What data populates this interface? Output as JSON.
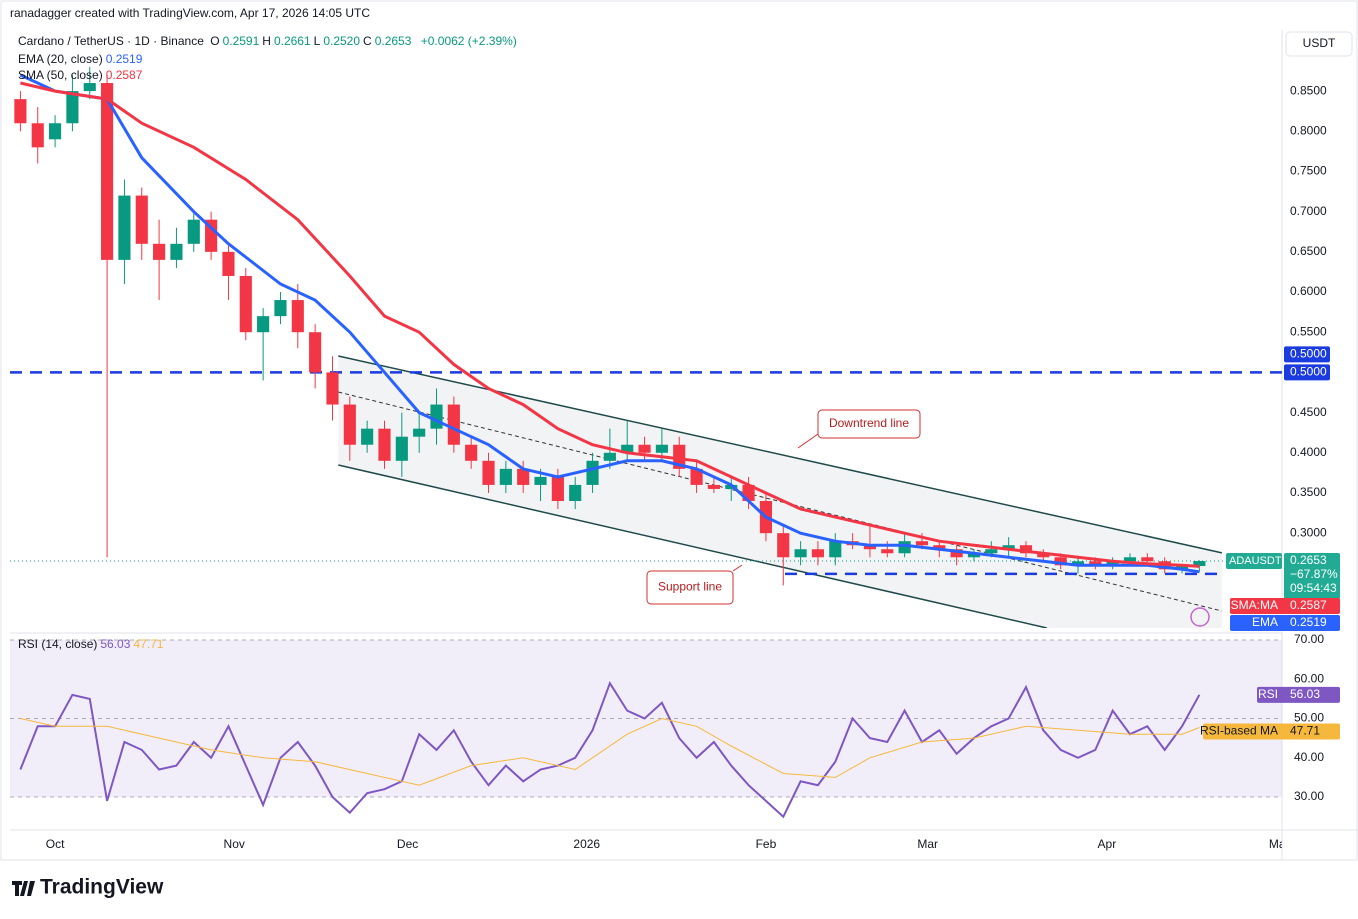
{
  "header": {
    "credit": "ranadagger created with TradingView.com, Apr 17, 2026 14:05 UTC",
    "brand": "TradingView"
  },
  "chart_data": [
    {
      "type": "candlestick",
      "title": "Cardano / TetherUS · 1D · Binance",
      "quote_letters": [
        "O",
        "H",
        "L",
        "C"
      ],
      "ohlc_labels": [
        "0.2591",
        "0.2661",
        "0.2520",
        "0.2653"
      ],
      "change": "+0.0062 (+2.39%)",
      "currency": "USDT",
      "x": [
        -6,
        -3,
        0,
        3,
        6,
        9,
        12,
        15,
        18,
        21,
        24,
        27,
        30,
        33,
        36,
        39,
        42,
        45,
        48,
        51,
        54,
        57,
        60,
        63,
        66,
        69,
        72,
        75,
        78,
        81,
        84,
        87,
        90,
        93,
        96,
        99,
        102,
        105,
        108,
        111,
        114,
        117,
        120,
        123,
        126,
        129,
        132,
        135,
        138,
        141,
        144,
        147,
        150,
        153,
        156,
        159,
        162,
        165,
        168,
        171,
        174,
        177,
        180,
        183,
        186,
        189,
        192,
        195,
        198
      ],
      "ohlc": [
        [
          0.84,
          0.85,
          0.8,
          0.81
        ],
        [
          0.81,
          0.83,
          0.76,
          0.78
        ],
        [
          0.79,
          0.82,
          0.78,
          0.81
        ],
        [
          0.81,
          0.87,
          0.8,
          0.85
        ],
        [
          0.85,
          0.88,
          0.84,
          0.86
        ],
        [
          0.86,
          0.87,
          0.27,
          0.64
        ],
        [
          0.64,
          0.74,
          0.61,
          0.72
        ],
        [
          0.72,
          0.73,
          0.64,
          0.66
        ],
        [
          0.66,
          0.69,
          0.59,
          0.64
        ],
        [
          0.64,
          0.68,
          0.63,
          0.66
        ],
        [
          0.66,
          0.7,
          0.65,
          0.69
        ],
        [
          0.69,
          0.7,
          0.64,
          0.65
        ],
        [
          0.65,
          0.66,
          0.59,
          0.62
        ],
        [
          0.62,
          0.63,
          0.54,
          0.55
        ],
        [
          0.55,
          0.58,
          0.49,
          0.57
        ],
        [
          0.57,
          0.6,
          0.56,
          0.59
        ],
        [
          0.59,
          0.61,
          0.53,
          0.55
        ],
        [
          0.55,
          0.56,
          0.48,
          0.5
        ],
        [
          0.5,
          0.52,
          0.44,
          0.46
        ],
        [
          0.46,
          0.47,
          0.39,
          0.41
        ],
        [
          0.41,
          0.44,
          0.4,
          0.43
        ],
        [
          0.43,
          0.44,
          0.38,
          0.39
        ],
        [
          0.39,
          0.45,
          0.37,
          0.42
        ],
        [
          0.42,
          0.45,
          0.4,
          0.43
        ],
        [
          0.43,
          0.48,
          0.41,
          0.46
        ],
        [
          0.46,
          0.47,
          0.4,
          0.41
        ],
        [
          0.41,
          0.42,
          0.38,
          0.39
        ],
        [
          0.39,
          0.4,
          0.35,
          0.36
        ],
        [
          0.36,
          0.39,
          0.35,
          0.38
        ],
        [
          0.38,
          0.39,
          0.35,
          0.36
        ],
        [
          0.36,
          0.38,
          0.34,
          0.37
        ],
        [
          0.37,
          0.38,
          0.33,
          0.34
        ],
        [
          0.34,
          0.37,
          0.33,
          0.36
        ],
        [
          0.36,
          0.4,
          0.35,
          0.39
        ],
        [
          0.39,
          0.43,
          0.38,
          0.4
        ],
        [
          0.4,
          0.44,
          0.39,
          0.41
        ],
        [
          0.41,
          0.42,
          0.39,
          0.4
        ],
        [
          0.4,
          0.43,
          0.39,
          0.41
        ],
        [
          0.41,
          0.42,
          0.37,
          0.38
        ],
        [
          0.38,
          0.39,
          0.35,
          0.36
        ],
        [
          0.36,
          0.37,
          0.35,
          0.355
        ],
        [
          0.355,
          0.37,
          0.34,
          0.36
        ],
        [
          0.36,
          0.37,
          0.33,
          0.34
        ],
        [
          0.34,
          0.35,
          0.29,
          0.3
        ],
        [
          0.3,
          0.31,
          0.235,
          0.27
        ],
        [
          0.27,
          0.29,
          0.26,
          0.28
        ],
        [
          0.28,
          0.29,
          0.26,
          0.27
        ],
        [
          0.27,
          0.3,
          0.26,
          0.29
        ],
        [
          0.29,
          0.3,
          0.28,
          0.285
        ],
        [
          0.285,
          0.31,
          0.27,
          0.28
        ],
        [
          0.28,
          0.29,
          0.27,
          0.275
        ],
        [
          0.275,
          0.3,
          0.27,
          0.29
        ],
        [
          0.29,
          0.3,
          0.28,
          0.285
        ],
        [
          0.285,
          0.29,
          0.27,
          0.28
        ],
        [
          0.28,
          0.285,
          0.26,
          0.27
        ],
        [
          0.27,
          0.28,
          0.265,
          0.275
        ],
        [
          0.275,
          0.29,
          0.27,
          0.28
        ],
        [
          0.28,
          0.295,
          0.27,
          0.285
        ],
        [
          0.285,
          0.29,
          0.27,
          0.275
        ],
        [
          0.275,
          0.28,
          0.265,
          0.27
        ],
        [
          0.27,
          0.275,
          0.255,
          0.26
        ],
        [
          0.26,
          0.27,
          0.25,
          0.265
        ],
        [
          0.265,
          0.27,
          0.255,
          0.26
        ],
        [
          0.26,
          0.27,
          0.255,
          0.265
        ],
        [
          0.265,
          0.275,
          0.26,
          0.27
        ],
        [
          0.27,
          0.275,
          0.26,
          0.265
        ],
        [
          0.265,
          0.27,
          0.25,
          0.255
        ],
        [
          0.255,
          0.26,
          0.25,
          0.259
        ],
        [
          0.2591,
          0.2661,
          0.252,
          0.2653
        ]
      ],
      "up_color": "#089981",
      "down_color": "#f23645",
      "xlim": [
        -7.8,
        212.3
      ],
      "xticks": [
        {
          "value": 0,
          "label": "Oct"
        },
        {
          "value": 31,
          "label": "Nov"
        },
        {
          "value": 61,
          "label": "Dec"
        },
        {
          "value": 92,
          "label": "2026"
        },
        {
          "value": 123,
          "label": "Feb"
        },
        {
          "value": 151,
          "label": "Mar"
        },
        {
          "value": 182,
          "label": "Apr"
        },
        {
          "value": 212,
          "label": "May"
        }
      ],
      "ylim": [
        0.182,
        0.926
      ],
      "yticks": [
        {
          "value": 0.3,
          "label": "0.3000"
        },
        {
          "value": 0.35,
          "label": "0.3500"
        },
        {
          "value": 0.4,
          "label": "0.4000"
        },
        {
          "value": 0.45,
          "label": "0.4500"
        },
        {
          "value": 0.55,
          "label": "0.5500"
        },
        {
          "value": 0.6,
          "label": "0.6000"
        },
        {
          "value": 0.65,
          "label": "0.6500"
        },
        {
          "value": 0.7,
          "label": "0.7000"
        },
        {
          "value": 0.75,
          "label": "0.7500"
        },
        {
          "value": 0.8,
          "label": "0.8000"
        },
        {
          "value": 0.85,
          "label": "0.8500"
        }
      ],
      "grid": false,
      "overlays": [
        {
          "name": "EMA (20, close)",
          "short_name": "EMA",
          "color": "#2962ff",
          "x": [
            -6,
            0,
            9,
            15,
            24,
            30,
            39,
            45,
            51,
            57,
            63,
            69,
            75,
            81,
            87,
            93,
            99,
            105,
            111,
            117,
            123,
            129,
            135,
            141,
            147,
            153,
            159,
            165,
            171,
            177,
            183,
            189,
            195,
            198
          ],
          "values": [
            0.87,
            0.85,
            0.84,
            0.767,
            0.7,
            0.66,
            0.61,
            0.59,
            0.55,
            0.5,
            0.45,
            0.43,
            0.41,
            0.38,
            0.37,
            0.38,
            0.39,
            0.39,
            0.38,
            0.36,
            0.32,
            0.3,
            0.29,
            0.285,
            0.285,
            0.28,
            0.275,
            0.27,
            0.265,
            0.26,
            0.26,
            0.26,
            0.255,
            0.2519
          ]
        },
        {
          "name": "SMA (50, close)",
          "short_name": "SMA:MA",
          "color": "#f23645",
          "x": [
            -6,
            0,
            9,
            15,
            24,
            33,
            42,
            51,
            57,
            63,
            69,
            75,
            81,
            87,
            93,
            99,
            105,
            111,
            117,
            123,
            129,
            135,
            141,
            147,
            153,
            159,
            165,
            171,
            177,
            183,
            189,
            195,
            198
          ],
          "values": [
            0.86,
            0.85,
            0.84,
            0.81,
            0.78,
            0.74,
            0.69,
            0.62,
            0.57,
            0.55,
            0.51,
            0.48,
            0.46,
            0.43,
            0.41,
            0.4,
            0.395,
            0.39,
            0.37,
            0.35,
            0.33,
            0.32,
            0.31,
            0.3,
            0.29,
            0.285,
            0.28,
            0.275,
            0.27,
            0.265,
            0.262,
            0.26,
            0.2587
          ]
        }
      ],
      "symbol_label": {
        "symbol": "ADAUSDT",
        "change": "−67.87%",
        "countdown": "09:54:43",
        "color": "#22ab94"
      },
      "levels": [
        {
          "value": 0.5,
          "label": "0.5000",
          "color": "#1a3be0"
        },
        {
          "value": 0.2493,
          "from": 126.3,
          "to": 201.9,
          "color": "#1a3be0"
        }
      ],
      "channel": {
        "upper": {
          "x": [
            49,
            201.9
          ],
          "values": [
            0.5204,
            0.2754
          ]
        },
        "lower": {
          "x": [
            49,
            171.6
          ],
          "values": [
            0.3848,
            0.182
          ]
        },
        "middle": {
          "x": [
            49,
            201.9
          ],
          "values": [
            0.4756,
            0.2032
          ]
        }
      },
      "annotations": [
        "Downtrend line",
        "Support line"
      ]
    },
    {
      "type": "line",
      "title": "RSI (14, close)",
      "xlim": [
        -7.8,
        212.3
      ],
      "ylim": [
        21.6,
        70.5
      ],
      "yticks": [
        {
          "value": 30,
          "label": "30.00"
        },
        {
          "value": 40,
          "label": "40.00"
        },
        {
          "value": 50,
          "label": "50.00"
        },
        {
          "value": 60,
          "label": "60.00"
        },
        {
          "value": 70,
          "label": "70.00"
        }
      ],
      "band": [
        30,
        70
      ],
      "midline": 50,
      "series": [
        {
          "name": "RSI",
          "color": "#7e57c2",
          "x": [
            -6,
            -3,
            0,
            3,
            6,
            9,
            12,
            15,
            18,
            21,
            24,
            27,
            30,
            33,
            36,
            39,
            42,
            45,
            48,
            51,
            54,
            57,
            60,
            63,
            66,
            69,
            72,
            75,
            78,
            81,
            84,
            87,
            90,
            93,
            96,
            99,
            102,
            105,
            108,
            111,
            114,
            117,
            120,
            123,
            126,
            129,
            132,
            135,
            138,
            141,
            144,
            147,
            150,
            153,
            156,
            159,
            162,
            165,
            168,
            171,
            174,
            177,
            180,
            183,
            186,
            189,
            192,
            195,
            198
          ],
          "values": [
            37,
            48,
            48,
            56,
            55,
            29,
            44,
            42,
            37,
            38,
            44,
            40,
            48,
            38,
            28,
            40,
            44,
            38,
            30,
            26,
            31,
            32,
            34,
            46,
            42,
            47,
            39,
            33,
            38,
            34,
            37,
            38,
            40,
            47,
            59,
            52,
            50,
            54,
            45,
            40,
            44,
            38,
            33,
            29,
            25,
            34,
            33,
            39,
            50,
            45,
            44,
            52,
            44,
            47,
            41,
            45,
            48,
            50,
            58,
            47,
            42,
            40,
            42,
            52,
            46,
            48,
            42,
            48,
            56.03
          ]
        },
        {
          "name": "RSI-based MA",
          "color": "#f5b83d",
          "x": [
            -6,
            0,
            9,
            18,
            27,
            36,
            45,
            54,
            63,
            72,
            81,
            90,
            99,
            105,
            111,
            117,
            126,
            135,
            141,
            150,
            159,
            168,
            177,
            186,
            195,
            198
          ],
          "values": [
            50,
            48,
            48,
            45,
            42,
            40,
            39,
            36,
            33,
            38,
            40,
            37,
            46,
            50,
            48,
            43,
            36,
            35,
            40,
            44,
            45,
            48,
            47,
            46,
            46,
            47.71
          ]
        }
      ]
    }
  ]
}
